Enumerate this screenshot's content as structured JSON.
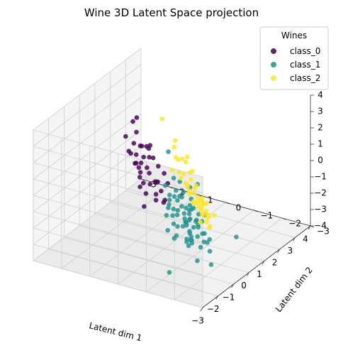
{
  "chart_data": {
    "type": "scatter",
    "projection": "3d",
    "title": "Wine 3D Latent Space projection",
    "xlabel": "Latent dim 1",
    "ylabel": "Latent dim 2",
    "zlabel": "",
    "xlim": [
      -3,
      4
    ],
    "ylim": [
      -3,
      3
    ],
    "zlim": [
      -4,
      4
    ],
    "xticks": [
      -3,
      -2,
      -1,
      0,
      1,
      2,
      3,
      4
    ],
    "yticks": [
      -3,
      -2,
      -1,
      0,
      1,
      2,
      3
    ],
    "zticks": [
      -4,
      -3,
      -2,
      -1,
      0,
      1,
      2,
      3,
      4
    ],
    "grid": true,
    "legend": {
      "title": "Wines",
      "placement": "top-right"
    },
    "series": [
      {
        "name": "class_0",
        "color": "#440154",
        "points": [
          [
            -0.55,
            0.2,
            2.65
          ],
          [
            -0.14,
            1.0,
            2.1
          ],
          [
            0.6,
            1.3,
            3.0
          ],
          [
            0.4,
            1.2,
            2.3
          ],
          [
            0.1,
            0.6,
            1.8
          ],
          [
            -0.35,
            0.8,
            1.65
          ],
          [
            0.9,
            1.6,
            2.4
          ],
          [
            0.25,
            1.5,
            2.0
          ],
          [
            -0.1,
            1.2,
            1.5
          ],
          [
            0.5,
            0.9,
            1.5
          ],
          [
            0.2,
            0.5,
            1.2
          ],
          [
            0.75,
            1.2,
            1.2
          ],
          [
            -0.25,
            0.9,
            1.0
          ],
          [
            0.5,
            1.0,
            0.8
          ],
          [
            -0.55,
            0.6,
            1.1
          ],
          [
            0.35,
            0.8,
            0.35
          ],
          [
            1.2,
            1.5,
            0.75
          ],
          [
            -0.05,
            0.5,
            0.45
          ],
          [
            0.1,
            0.9,
            0.2
          ],
          [
            -0.6,
            -0.1,
            0.6
          ],
          [
            0.05,
            0.3,
            -0.1
          ],
          [
            0.55,
            0.3,
            0.1
          ],
          [
            1.05,
            1.1,
            0.35
          ],
          [
            -0.9,
            -0.2,
            0.1
          ],
          [
            0.25,
            1.0,
            -0.25
          ],
          [
            0.55,
            0.8,
            -0.8
          ],
          [
            -0.35,
            0.1,
            -0.8
          ],
          [
            0.35,
            0.5,
            -0.35
          ],
          [
            -0.75,
            0.3,
            -1.0
          ],
          [
            0.15,
            0.1,
            -1.3
          ],
          [
            0.3,
            0.9,
            -0.6
          ],
          [
            0.7,
            1.2,
            0.2
          ],
          [
            -0.2,
            0.0,
            -0.3
          ],
          [
            0.1,
            0.7,
            -1.0
          ],
          [
            0.6,
            0.2,
            -0.5
          ],
          [
            -0.5,
            -0.3,
            -0.5
          ],
          [
            0.4,
            1.4,
            0.9
          ],
          [
            0.9,
            0.7,
            0.1
          ],
          [
            -0.1,
            0.8,
            -0.5
          ],
          [
            0.2,
            1.1,
            0.6
          ]
        ]
      },
      {
        "name": "class_1",
        "color": "#21918c",
        "points": [
          [
            -1.2,
            -0.8,
            3.2
          ],
          [
            -1.5,
            -2.0,
            2.0
          ],
          [
            -0.7,
            -1.3,
            0.9
          ],
          [
            -0.4,
            -0.9,
            0.2
          ],
          [
            -1.0,
            -1.5,
            0.5
          ],
          [
            -1.4,
            -2.1,
            -0.3
          ],
          [
            -0.6,
            -0.8,
            -0.2
          ],
          [
            -1.6,
            -2.3,
            -0.8
          ],
          [
            -0.3,
            -0.5,
            0.8
          ],
          [
            -0.9,
            -1.2,
            -0.6
          ],
          [
            -0.5,
            -0.6,
            -0.9
          ],
          [
            -1.2,
            -1.8,
            -0.5
          ],
          [
            -0.2,
            -0.3,
            -0.4
          ],
          [
            -0.9,
            -1.4,
            0.0
          ],
          [
            -1.8,
            -2.6,
            -1.6
          ],
          [
            -1.0,
            -1.3,
            -1.0
          ],
          [
            -0.3,
            -0.2,
            0.2
          ],
          [
            -1.5,
            -2.0,
            -1.2
          ],
          [
            -0.7,
            -1.0,
            -0.4
          ],
          [
            -0.1,
            -0.2,
            -1.3
          ],
          [
            -1.3,
            -2.0,
            -2.0
          ],
          [
            -0.4,
            -0.7,
            -1.0
          ],
          [
            -0.8,
            -1.1,
            -1.5
          ],
          [
            -0.2,
            -0.3,
            -0.7
          ],
          [
            -1.9,
            -2.7,
            -2.3
          ],
          [
            -1.0,
            -1.5,
            -1.8
          ],
          [
            0.0,
            -0.3,
            -1.8
          ],
          [
            0.5,
            -0.5,
            -1.6
          ],
          [
            -0.6,
            -0.8,
            -1.8
          ],
          [
            -1.1,
            -1.4,
            -2.1
          ],
          [
            0.6,
            -0.3,
            -1.1
          ],
          [
            -0.3,
            -0.5,
            -2.0
          ],
          [
            0.9,
            -0.4,
            -2.3
          ],
          [
            0.2,
            -0.8,
            -2.8
          ],
          [
            1.1,
            -0.6,
            -3.0
          ],
          [
            -0.1,
            -1.0,
            -2.9
          ],
          [
            -0.8,
            -1.3,
            -2.6
          ],
          [
            -1.7,
            -2.1,
            -2.5
          ],
          [
            1.3,
            -0.9,
            -3.9
          ],
          [
            -0.5,
            -1.0,
            -1.3
          ],
          [
            -1.2,
            -1.7,
            -1.0
          ],
          [
            -0.6,
            -1.3,
            -2.4
          ],
          [
            0.3,
            -0.8,
            -1.4
          ],
          [
            -0.2,
            -1.0,
            -1.0
          ],
          [
            -2.6,
            -1.6,
            -2.8
          ],
          [
            -1.8,
            -2.1,
            0.0
          ],
          [
            -1.1,
            -1.5,
            -1.4
          ],
          [
            -0.1,
            -0.6,
            -0.4
          ],
          [
            0.4,
            -0.2,
            -0.6
          ],
          [
            -0.9,
            -1.7,
            -1.2
          ],
          [
            -0.4,
            -0.3,
            -1.5
          ],
          [
            -1.5,
            -1.8,
            -1.7
          ],
          [
            0.7,
            -0.4,
            -2.7
          ],
          [
            -0.7,
            -1.6,
            -0.6
          ],
          [
            0.1,
            -0.5,
            0.3
          ],
          [
            -1.3,
            -1.5,
            -0.9
          ],
          [
            -0.2,
            -1.0,
            -1.6
          ],
          [
            -0.8,
            -0.9,
            -0.9
          ],
          [
            0.4,
            -0.7,
            -2.1
          ],
          [
            -1.6,
            -2.4,
            -1.3
          ],
          [
            -0.5,
            -0.4,
            -2.3
          ],
          [
            0.3,
            -0.2,
            -0.9
          ],
          [
            -1.0,
            -0.9,
            -2.2
          ],
          [
            -0.3,
            -1.2,
            -0.7
          ],
          [
            0.8,
            -1.0,
            -2.0
          ],
          [
            -1.4,
            -1.2,
            -1.6
          ],
          [
            -0.9,
            -1.9,
            -2.0
          ],
          [
            0.1,
            -1.3,
            -2.5
          ],
          [
            -0.6,
            -0.5,
            -0.6
          ],
          [
            0.0,
            -0.8,
            -3.0
          ],
          [
            1.2,
            -1.9,
            -3.2
          ]
        ]
      },
      {
        "name": "class_2",
        "color": "#fde725",
        "points": [
          [
            2.8,
            1.6,
            1.2
          ],
          [
            1.6,
            0.6,
            -0.6
          ],
          [
            3.1,
            1.3,
            -0.2
          ],
          [
            2.6,
            0.6,
            -0.5
          ],
          [
            3.4,
            1.5,
            -0.9
          ],
          [
            2.2,
            0.2,
            -0.9
          ],
          [
            3.0,
            1.0,
            -1.1
          ],
          [
            1.7,
            0.1,
            -1.4
          ],
          [
            2.6,
            0.9,
            -1.6
          ],
          [
            3.5,
            1.5,
            -1.6
          ],
          [
            1.2,
            -0.5,
            -1.8
          ],
          [
            2.0,
            0.0,
            -1.7
          ],
          [
            2.9,
            0.9,
            -1.9
          ],
          [
            3.3,
            1.3,
            -1.5
          ],
          [
            1.9,
            -0.3,
            -2.1
          ],
          [
            2.6,
            0.6,
            -2.2
          ],
          [
            1.5,
            -0.5,
            -2.3
          ],
          [
            3.1,
            1.1,
            -2.4
          ],
          [
            2.2,
            0.3,
            -2.3
          ],
          [
            1.1,
            -0.9,
            -2.7
          ],
          [
            2.0,
            -0.4,
            -2.9
          ],
          [
            2.4,
            0.1,
            -2.6
          ],
          [
            2.9,
            0.7,
            -2.8
          ],
          [
            1.7,
            -0.6,
            -3.0
          ],
          [
            2.7,
            0.4,
            -2.7
          ],
          [
            2.0,
            -0.5,
            -3.2
          ],
          [
            2.8,
            0.3,
            -3.5
          ],
          [
            3.3,
            0.9,
            -3.4
          ],
          [
            1.5,
            -0.8,
            -3.3
          ],
          [
            2.3,
            -0.1,
            -3.4
          ],
          [
            3.6,
            1.2,
            -3.1
          ],
          [
            2.6,
            0.2,
            -3.0
          ],
          [
            1.3,
            -0.9,
            -3.2
          ],
          [
            3.0,
            0.5,
            -2.5
          ],
          [
            2.1,
            -0.2,
            -2.5
          ],
          [
            1.8,
            -0.3,
            -3.5
          ],
          [
            2.5,
            0.0,
            -3.7
          ],
          [
            3.2,
            0.7,
            -3.7
          ],
          [
            2.9,
            -0.2,
            -3.9
          ],
          [
            3.8,
            1.3,
            -2.0
          ],
          [
            3.4,
            0.9,
            -2.6
          ],
          [
            2.2,
            -0.1,
            -3.1
          ],
          [
            1.5,
            -0.7,
            -2.6
          ],
          [
            2.7,
            0.1,
            -3.2
          ],
          [
            3.0,
            0.6,
            -3.6
          ],
          [
            2.4,
            -0.2,
            -2.8
          ],
          [
            1.9,
            -0.4,
            -2.4
          ],
          [
            3.5,
            1.0,
            -2.3
          ]
        ]
      }
    ]
  }
}
